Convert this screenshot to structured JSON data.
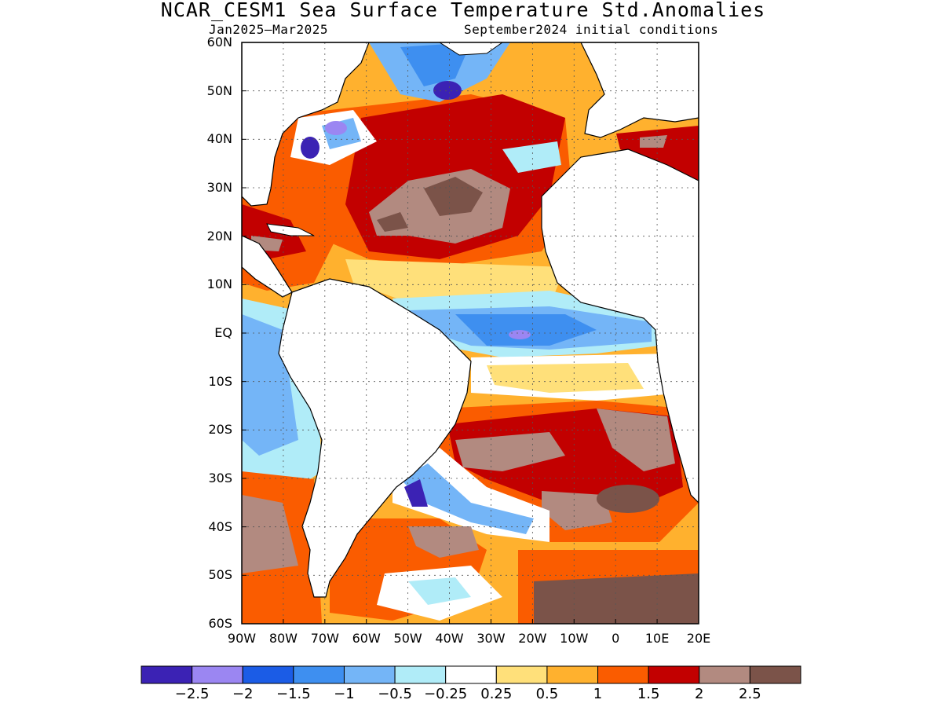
{
  "title": "NCAR_CESM1 Sea Surface Temperature Std.Anomalies",
  "subtitle_left": "Jan2025–Mar2025",
  "subtitle_right": "September2024 initial conditions",
  "lat_labels": [
    "60N",
    "50N",
    "40N",
    "30N",
    "20N",
    "10N",
    "EQ",
    "10S",
    "20S",
    "30S",
    "40S",
    "50S",
    "60S"
  ],
  "lon_labels": [
    "90W",
    "80W",
    "70W",
    "60W",
    "50W",
    "40W",
    "30W",
    "20W",
    "10W",
    "0",
    "10E",
    "20E"
  ],
  "colorbar": {
    "labels": [
      "−2.5",
      "−2",
      "−1.5",
      "−1",
      "−0.5",
      "−0.25",
      "0.25",
      "0.5",
      "1",
      "1.5",
      "2",
      "2.5"
    ],
    "colors": [
      "#3b22b4",
      "#9b86f2",
      "#1b5ce6",
      "#3e8ff0",
      "#74b5f7",
      "#b0ecf8",
      "#ffffff",
      "#ffe07a",
      "#ffb12e",
      "#fa5c00",
      "#c20000",
      "#b28a80",
      "#7b5349"
    ]
  },
  "map": {
    "extent": {
      "lon": [
        -90,
        20
      ],
      "lat": [
        -60,
        60
      ]
    },
    "grid": "dotted 10°"
  }
}
